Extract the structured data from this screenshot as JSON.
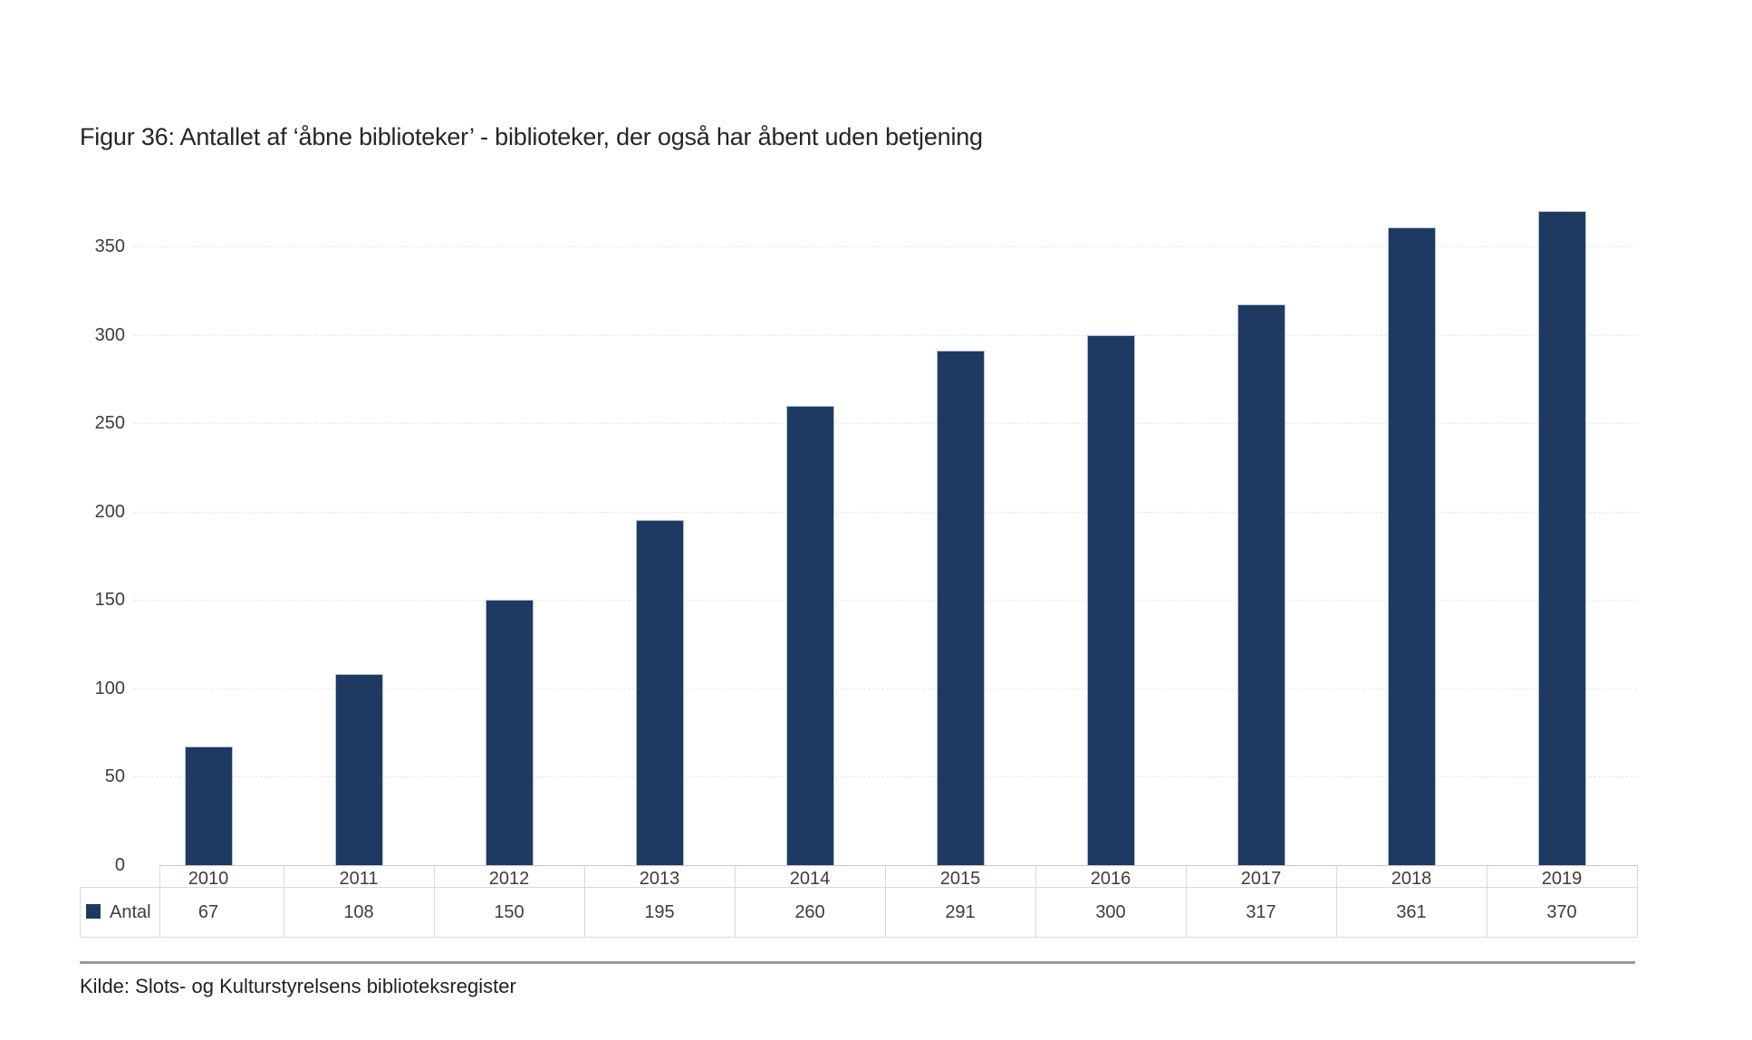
{
  "title": "Figur 36: Antallet af ‘åbne biblioteker’ - biblioteker, der også har åbent uden betjening",
  "source": "Kilde: Slots- og Kulturstyrelsens biblioteksregister",
  "legend": {
    "label": "Antal",
    "swatch_color": "#1e3a63"
  },
  "colors": {
    "bar_fill": "#1e3a63",
    "bar_border": "#b3c0d4",
    "gridline": "#e8e8e8",
    "axis_line": "#c9c9c9",
    "table_border": "#d9d9d9",
    "label_text": "#3d3d3d",
    "title_text": "#262626",
    "source_rule": "#9a9a9a"
  },
  "chart_data": {
    "type": "bar",
    "title": "Figur 36: Antallet af ‘åbne biblioteker’ - biblioteker, der også har åbent uden betjening",
    "categories": [
      "2010",
      "2011",
      "2012",
      "2013",
      "2014",
      "2015",
      "2016",
      "2017",
      "2018",
      "2019"
    ],
    "series": [
      {
        "name": "Antal",
        "values": [
          67,
          108,
          150,
          195,
          260,
          291,
          300,
          317,
          361,
          370
        ]
      }
    ],
    "xlabel": "",
    "ylabel": "",
    "yticks": [
      0,
      50,
      100,
      150,
      200,
      250,
      300,
      350
    ],
    "ylim": [
      0,
      380
    ],
    "grid": "horizontal-dashed",
    "legend_position": "data-table-left",
    "data_table": true,
    "source": "Kilde: Slots- og Kulturstyrelsens biblioteksregister"
  }
}
